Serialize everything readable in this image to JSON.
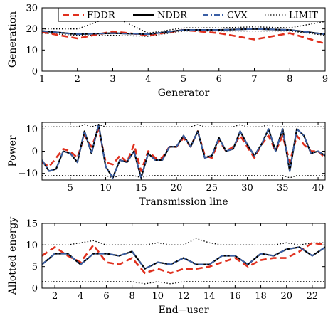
{
  "chart_data": [
    {
      "type": "line",
      "xlabel": "Generator",
      "ylabel": "Generation",
      "xlim": [
        1,
        9
      ],
      "ylim": [
        0,
        30
      ],
      "xticks": [
        1,
        2,
        3,
        4,
        5,
        6,
        7,
        8,
        9
      ],
      "yticks": [
        0,
        10,
        20,
        30
      ],
      "grid": false,
      "legend": "top",
      "x": [
        1,
        2,
        3,
        4,
        5,
        6,
        7,
        8,
        9
      ],
      "series": [
        {
          "name": "FDDR",
          "color": "#e0301e",
          "dash": "dashed",
          "values": [
            18.5,
            15.5,
            18.8,
            17.0,
            19.5,
            18.0,
            15.0,
            18.0,
            13.0
          ]
        },
        {
          "name": "NDDR",
          "color": "#000000",
          "dash": "solid",
          "values": [
            19.0,
            17.5,
            18.0,
            17.5,
            19.5,
            19.5,
            20.0,
            19.5,
            17.5
          ]
        },
        {
          "name": "CVX",
          "color": "#3a5fa5",
          "dash": "dashdot",
          "values": [
            19.0,
            17.5,
            18.0,
            17.5,
            19.5,
            19.5,
            20.0,
            19.5,
            17.5
          ]
        },
        {
          "name": "LIMIT",
          "color": "#000000",
          "dash": "dotted",
          "values": [
            20.0,
            20.0,
            26.0,
            18.0,
            20.5,
            20.5,
            21.0,
            20.5,
            23.5
          ]
        },
        {
          "name": "",
          "color": "#000000",
          "dash": "dotted",
          "values": [
            18.0,
            17.0,
            17.0,
            16.5,
            19.0,
            19.0,
            19.0,
            19.0,
            17.0
          ]
        }
      ]
    },
    {
      "type": "line",
      "xlabel": "Transmission line",
      "ylabel": "Power",
      "xlim": [
        1,
        41
      ],
      "ylim": [
        -13,
        13
      ],
      "xticks": [
        5,
        10,
        15,
        20,
        25,
        30,
        35,
        40
      ],
      "yticks": [
        -10,
        0,
        10
      ],
      "grid": false,
      "x": [
        1,
        2,
        3,
        4,
        5,
        6,
        7,
        8,
        9,
        10,
        11,
        12,
        13,
        14,
        15,
        16,
        17,
        18,
        19,
        20,
        21,
        22,
        23,
        24,
        25,
        26,
        27,
        28,
        29,
        30,
        31,
        32,
        33,
        34,
        35,
        36,
        37,
        38,
        39,
        40,
        41
      ],
      "series": [
        {
          "name": "FDDR",
          "color": "#e0301e",
          "dash": "dashed",
          "values": [
            -5,
            -7,
            -3,
            1,
            0,
            -3,
            7,
            2,
            10,
            -5,
            -6,
            -2,
            -5,
            3,
            -9,
            0,
            -3,
            -3,
            2,
            2,
            6,
            2,
            9,
            -2,
            -3,
            5,
            0,
            2,
            7,
            2,
            -3,
            3,
            7,
            0,
            7,
            -5,
            7,
            3,
            0,
            0,
            -3
          ]
        },
        {
          "name": "NDDR",
          "color": "#000000",
          "dash": "solid",
          "values": [
            -4,
            -9,
            -8,
            0,
            -1,
            -5,
            9,
            -1,
            12,
            -7,
            -12,
            -4,
            -5,
            0,
            -12,
            -1,
            -4,
            -4,
            2,
            2,
            7,
            2,
            9,
            -3,
            -2,
            6,
            0,
            1,
            9,
            3,
            -2,
            3,
            10,
            0,
            10,
            -9,
            10,
            7,
            -1,
            0,
            -2
          ]
        },
        {
          "name": "CVX",
          "color": "#3a5fa5",
          "dash": "dashdot",
          "values": [
            -4,
            -9,
            -8,
            0,
            -1,
            -5,
            9,
            -1,
            12,
            -7,
            -12,
            -4,
            -5,
            0,
            -12,
            -1,
            -4,
            -4,
            2,
            2,
            7,
            2,
            9,
            -3,
            -2,
            6,
            0,
            1,
            9,
            3,
            -2,
            3,
            10,
            0,
            10,
            -9,
            10,
            7,
            -1,
            0,
            -2
          ]
        },
        {
          "name": "",
          "color": "#000000",
          "dash": "dotted",
          "values": [
            11,
            11,
            11,
            11,
            11,
            11,
            12,
            11,
            12,
            11,
            11,
            11,
            11,
            11,
            11,
            11,
            11,
            11,
            11,
            11,
            11,
            11,
            12,
            11,
            11,
            11,
            11,
            11,
            12,
            11,
            11,
            11,
            12,
            11,
            11,
            11,
            11,
            11,
            11,
            11,
            11
          ]
        },
        {
          "name": "",
          "color": "#000000",
          "dash": "dotted",
          "values": [
            -11,
            -11,
            -11,
            -11,
            -11,
            -11,
            -11,
            -11,
            -11,
            -11,
            -12,
            -11,
            -11,
            -11,
            -12,
            -11,
            -11,
            -11,
            -11,
            -11,
            -11,
            -11,
            -11,
            -11,
            -11,
            -11,
            -11,
            -11,
            -11,
            -11,
            -11,
            -11,
            -11,
            -11,
            -11,
            -12,
            -11,
            -11,
            -11,
            -11,
            -11
          ]
        }
      ]
    },
    {
      "type": "line",
      "xlabel": "End−user",
      "ylabel": "Allotted energy",
      "xlim": [
        1,
        23
      ],
      "ylim": [
        0,
        15
      ],
      "xticks": [
        2,
        4,
        6,
        8,
        10,
        12,
        14,
        16,
        18,
        20,
        22
      ],
      "yticks": [
        0,
        5,
        10,
        15
      ],
      "grid": false,
      "x": [
        1,
        2,
        3,
        4,
        5,
        6,
        7,
        8,
        9,
        10,
        11,
        12,
        13,
        14,
        15,
        16,
        17,
        18,
        19,
        20,
        21,
        22,
        23
      ],
      "series": [
        {
          "name": "FDDR",
          "color": "#e0301e",
          "dash": "dashed",
          "values": [
            7.5,
            9.5,
            7.5,
            6.0,
            10.0,
            6.0,
            5.5,
            7.0,
            3.5,
            4.5,
            3.5,
            4.5,
            4.5,
            5.0,
            6.0,
            7.0,
            5.0,
            6.5,
            7.0,
            7.0,
            8.5,
            10.5,
            10.0
          ]
        },
        {
          "name": "NDDR",
          "color": "#000000",
          "dash": "solid",
          "values": [
            5.5,
            8.0,
            8.0,
            5.5,
            8.0,
            8.0,
            7.5,
            8.5,
            4.5,
            6.0,
            5.5,
            7.0,
            5.5,
            5.5,
            7.5,
            7.5,
            5.5,
            8.0,
            7.5,
            9.0,
            9.5,
            7.5,
            9.5
          ]
        },
        {
          "name": "CVX",
          "color": "#3a5fa5",
          "dash": "dashdot",
          "values": [
            5.5,
            8.0,
            8.0,
            5.5,
            8.0,
            8.0,
            7.5,
            8.5,
            4.5,
            6.0,
            5.5,
            7.0,
            5.5,
            5.5,
            7.5,
            7.5,
            5.5,
            8.0,
            7.5,
            9.0,
            9.5,
            7.5,
            9.5
          ]
        },
        {
          "name": "",
          "color": "#000000",
          "dash": "dotted",
          "values": [
            10.0,
            10.0,
            10.0,
            10.5,
            11.0,
            10.0,
            10.0,
            10.0,
            10.0,
            10.5,
            10.0,
            10.0,
            11.5,
            10.5,
            10.0,
            10.0,
            10.0,
            10.0,
            10.0,
            10.5,
            10.0,
            10.5,
            10.5
          ]
        },
        {
          "name": "",
          "color": "#000000",
          "dash": "dotted",
          "values": [
            1.5,
            1.5,
            1.5,
            1.5,
            1.5,
            1.5,
            1.5,
            1.5,
            1.0,
            1.5,
            1.0,
            1.5,
            1.5,
            1.5,
            1.5,
            1.5,
            1.5,
            1.5,
            1.5,
            1.5,
            1.5,
            1.5,
            1.5
          ]
        }
      ]
    }
  ]
}
